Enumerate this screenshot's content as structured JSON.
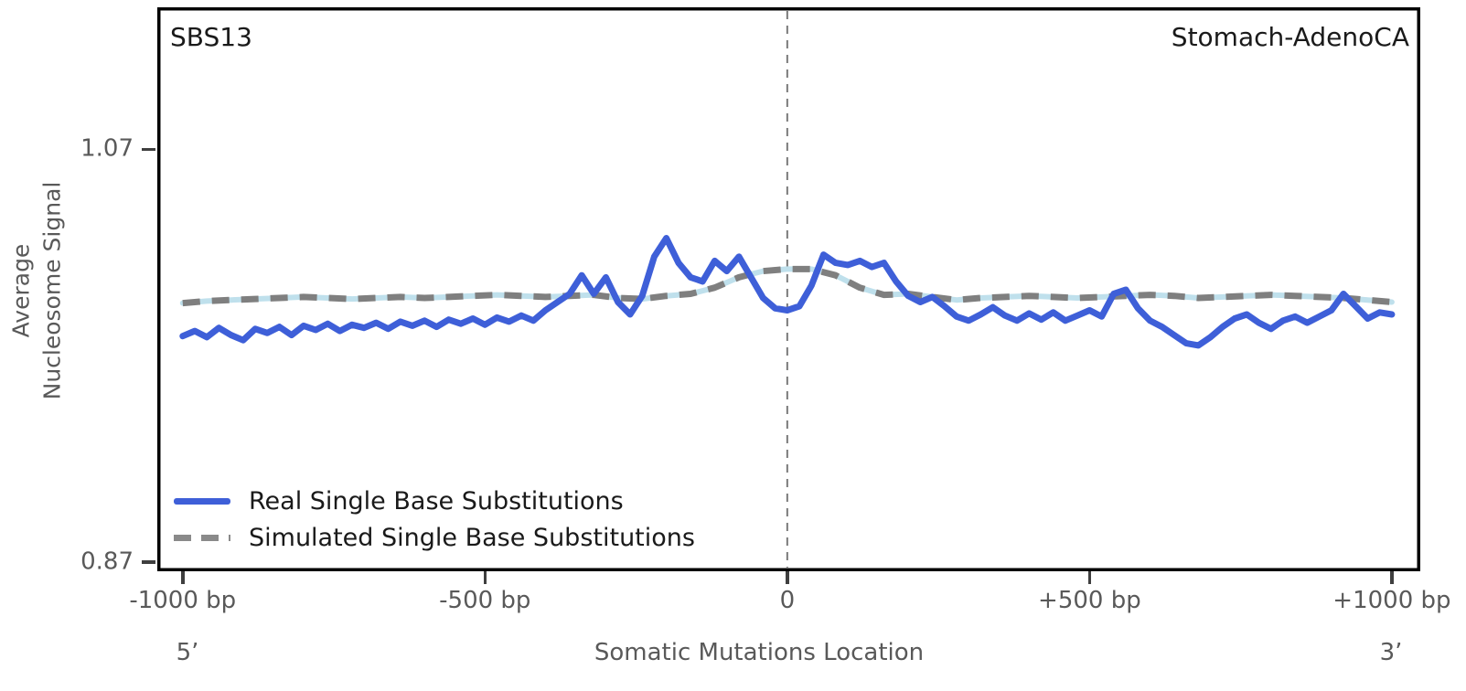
{
  "header": {
    "left_label": "SBS13",
    "right_label": "Stomach-AdenoCA"
  },
  "axes": {
    "ylabel": "Average\nNucleosome Signal",
    "xlabel": "Somatic Mutations Location",
    "left_end_label": "5’",
    "right_end_label": "3’"
  },
  "colors": {
    "real_line": "#3e5fd8",
    "simulated_line": "#7f7f7f",
    "simulated_underlay": "#bfe0ec",
    "center_line": "#7a7a7a",
    "axis_border": "#000000",
    "tick_mark": "#3f3f3f",
    "muted_text": "#595959",
    "main_text": "#1a1a1a"
  },
  "chart_data": {
    "type": "line",
    "title": "",
    "xlabel": "Somatic Mutations Location",
    "ylabel": "Average Nucleosome Signal",
    "xlim": [
      -1042,
      1047
    ],
    "ylim": [
      0.8655,
      1.1389
    ],
    "grid": false,
    "legend_position": "lower-left-inside",
    "center_line_x": 0,
    "xticks": [
      {
        "value": -1000,
        "label": "-1000 bp"
      },
      {
        "value": -500,
        "label": "-500 bp"
      },
      {
        "value": 0,
        "label": "0"
      },
      {
        "value": 500,
        "label": "+500 bp"
      },
      {
        "value": 1000,
        "label": "+1000 bp"
      }
    ],
    "yticks": [
      {
        "value": 1.07,
        "label": "1.07"
      },
      {
        "value": 0.87,
        "label": "0.87"
      }
    ],
    "series": [
      {
        "name": "Real Single Base Substitutions",
        "style": "solid",
        "color": "#3e5fd8",
        "x": [
          -1000,
          -980,
          -960,
          -940,
          -920,
          -900,
          -880,
          -860,
          -840,
          -820,
          -800,
          -780,
          -760,
          -740,
          -720,
          -700,
          -680,
          -660,
          -640,
          -620,
          -600,
          -580,
          -560,
          -540,
          -520,
          -500,
          -480,
          -460,
          -440,
          -420,
          -400,
          -380,
          -360,
          -340,
          -320,
          -300,
          -280,
          -260,
          -240,
          -220,
          -200,
          -180,
          -160,
          -140,
          -120,
          -100,
          -80,
          -60,
          -40,
          -20,
          0,
          20,
          40,
          60,
          80,
          100,
          120,
          140,
          160,
          180,
          200,
          220,
          240,
          260,
          280,
          300,
          320,
          340,
          360,
          380,
          400,
          420,
          440,
          460,
          480,
          500,
          520,
          540,
          560,
          580,
          600,
          620,
          640,
          660,
          680,
          700,
          720,
          740,
          760,
          780,
          800,
          820,
          840,
          860,
          880,
          900,
          920,
          940,
          960,
          980,
          1000
        ],
        "values": [
          0.9795,
          0.982,
          0.979,
          0.9835,
          0.98,
          0.9775,
          0.983,
          0.981,
          0.984,
          0.98,
          0.9845,
          0.9825,
          0.9855,
          0.982,
          0.985,
          0.9835,
          0.986,
          0.983,
          0.9865,
          0.9845,
          0.987,
          0.984,
          0.9875,
          0.9855,
          0.988,
          0.985,
          0.9885,
          0.9865,
          0.9895,
          0.987,
          0.992,
          0.996,
          1.0,
          1.009,
          1.0,
          1.008,
          0.996,
          0.99,
          0.999,
          1.018,
          1.027,
          1.015,
          1.008,
          1.006,
          1.016,
          1.011,
          1.018,
          1.008,
          0.998,
          0.993,
          0.992,
          0.994,
          1.004,
          1.019,
          1.015,
          1.014,
          1.016,
          1.013,
          1.015,
          1.006,
          0.999,
          0.996,
          0.9985,
          0.994,
          0.989,
          0.987,
          0.99,
          0.9935,
          0.9895,
          0.987,
          0.9905,
          0.9875,
          0.991,
          0.987,
          0.9895,
          0.992,
          0.989,
          1.0,
          1.002,
          0.993,
          0.987,
          0.984,
          0.98,
          0.976,
          0.975,
          0.979,
          0.984,
          0.988,
          0.99,
          0.986,
          0.983,
          0.987,
          0.989,
          0.986,
          0.989,
          0.992,
          1.0,
          0.994,
          0.988,
          0.991,
          0.99
        ]
      },
      {
        "name": "Simulated Single Base Substitutions",
        "style": "dashed",
        "color": "#7f7f7f",
        "underlay_color": "#bfe0ec",
        "x": [
          -1000,
          -960,
          -920,
          -880,
          -840,
          -800,
          -760,
          -720,
          -680,
          -640,
          -600,
          -560,
          -520,
          -480,
          -440,
          -400,
          -360,
          -320,
          -280,
          -240,
          -200,
          -160,
          -120,
          -80,
          -40,
          0,
          40,
          80,
          120,
          160,
          200,
          240,
          280,
          320,
          360,
          400,
          440,
          480,
          520,
          560,
          600,
          640,
          680,
          720,
          760,
          800,
          840,
          880,
          920,
          960,
          1000
        ],
        "values": [
          0.9955,
          0.9965,
          0.997,
          0.9975,
          0.998,
          0.9985,
          0.998,
          0.9975,
          0.998,
          0.9985,
          0.998,
          0.9985,
          0.999,
          0.9995,
          0.999,
          0.9985,
          0.999,
          0.9995,
          0.998,
          0.9975,
          0.999,
          1.0,
          1.003,
          1.008,
          1.011,
          1.012,
          1.012,
          1.009,
          1.003,
          0.9995,
          1.0,
          0.9985,
          0.997,
          0.998,
          0.9985,
          0.999,
          0.9985,
          0.998,
          0.9985,
          0.999,
          0.9995,
          0.999,
          0.998,
          0.9985,
          0.999,
          0.9995,
          0.999,
          0.9985,
          0.998,
          0.997,
          0.996
        ]
      }
    ]
  }
}
